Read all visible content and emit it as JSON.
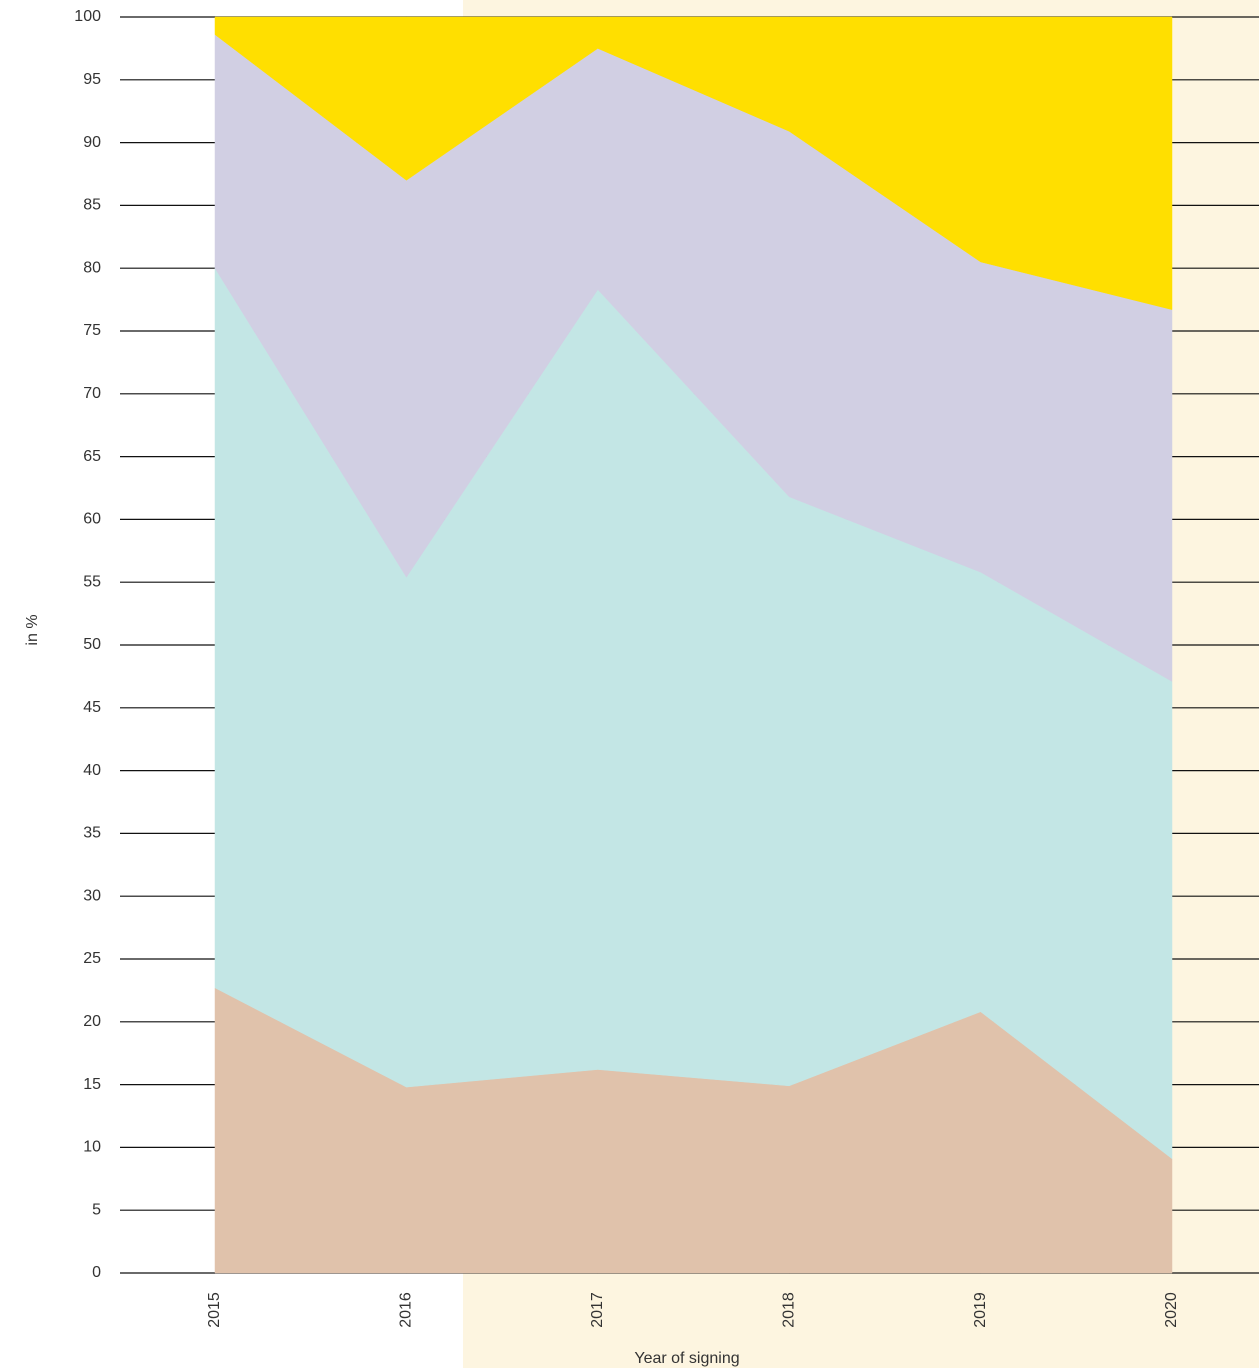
{
  "chart_data": {
    "type": "stacked_area",
    "x_label": "Year of signing",
    "y_label": "in %",
    "categories": [
      "2015",
      "2016",
      "2017",
      "2018",
      "2019",
      "2020"
    ],
    "series": [
      {
        "color": "#e0c2ab",
        "values": [
          22.7,
          14.8,
          16.2,
          14.9,
          20.8,
          9.1
        ]
      },
      {
        "color": "#c3e6e5",
        "values": [
          57.3,
          40.6,
          62.1,
          46.9,
          35.0,
          38.0
        ]
      },
      {
        "color": "#d1cfe3",
        "values": [
          18.6,
          31.6,
          19.2,
          29.1,
          24.7,
          29.6
        ]
      },
      {
        "color": "#ffdf00",
        "values": [
          1.4,
          13.0,
          2.5,
          9.1,
          19.5,
          23.3
        ]
      }
    ],
    "ylim": [
      0,
      100
    ],
    "yticks": [
      0,
      5,
      10,
      15,
      20,
      25,
      30,
      35,
      40,
      45,
      50,
      55,
      60,
      65,
      70,
      75,
      80,
      85,
      90,
      95,
      100
    ],
    "grid": true
  }
}
